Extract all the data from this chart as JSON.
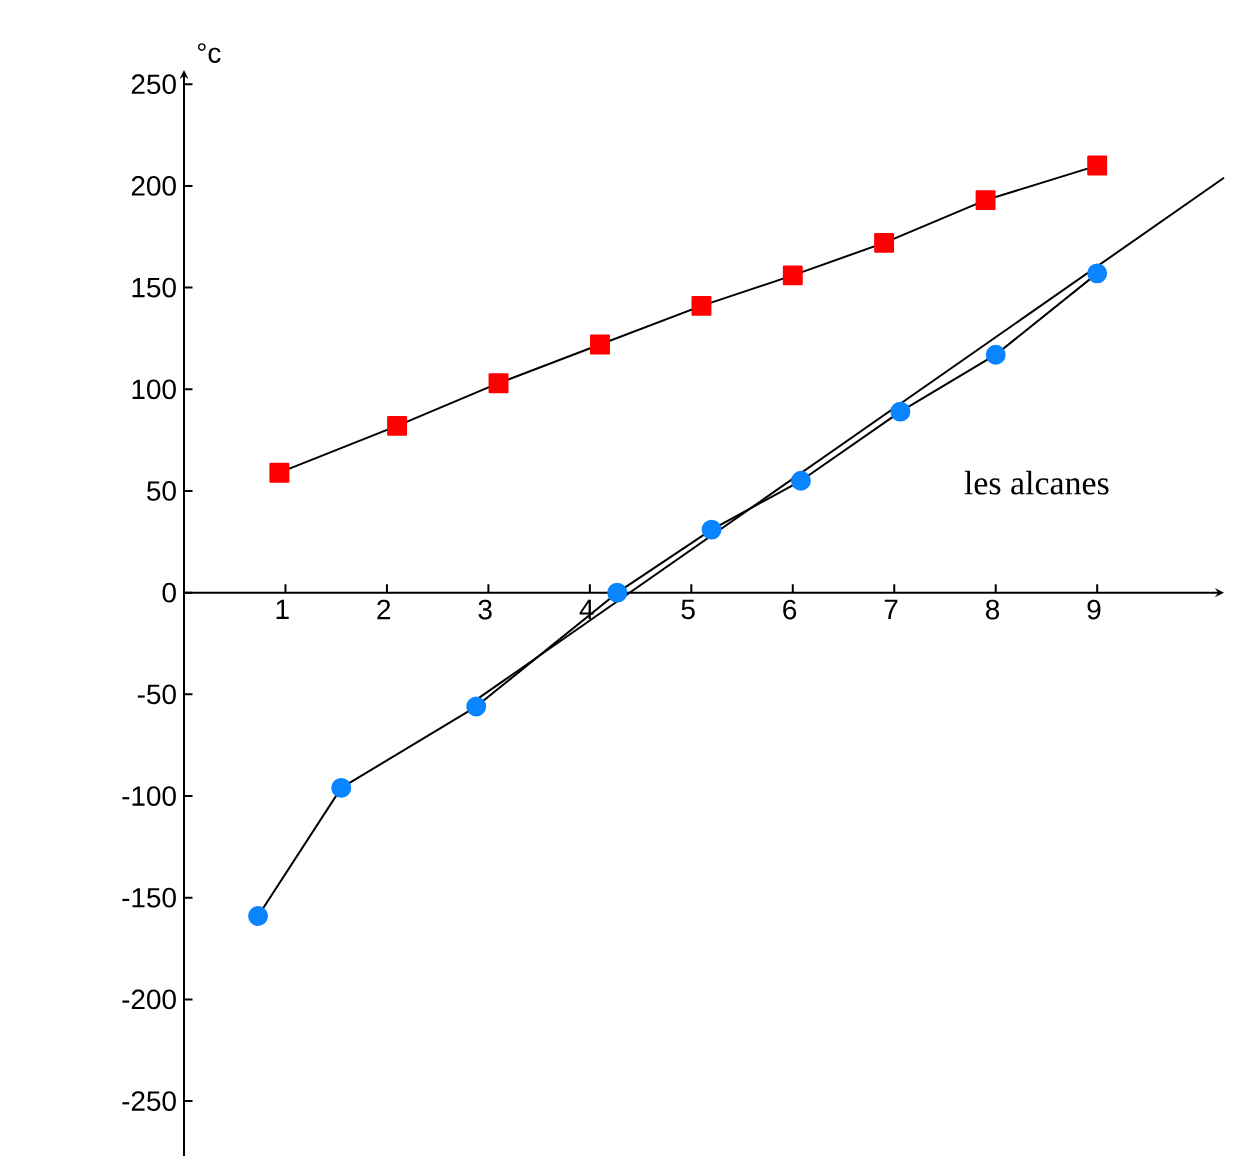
{
  "chart_data": {
    "type": "line",
    "ylabel": "°c",
    "xlim": [
      0,
      10.25
    ],
    "ylim": [
      -277,
      257
    ],
    "xticks": [
      1,
      2,
      3,
      4,
      5,
      6,
      7,
      8,
      9
    ],
    "yticks": [
      -250,
      -200,
      -150,
      -100,
      -50,
      0,
      50,
      100,
      150,
      200,
      250
    ],
    "grid": false,
    "line_style": "solid",
    "series": [
      {
        "color": "#ff0000",
        "marker": "square",
        "x": [
          0.94,
          2.1,
          3.1,
          4.1,
          5.1,
          6.0,
          6.9,
          7.9,
          9.0
        ],
        "values": [
          59,
          82,
          103,
          122,
          141,
          156,
          172,
          193,
          210
        ]
      },
      {
        "color": "#0a84ff",
        "marker": "circle",
        "x": [
          0.73,
          1.55,
          2.88,
          4.27,
          5.2,
          6.08,
          7.06,
          8.0,
          9.0
        ],
        "values": [
          -159,
          -96,
          -56,
          0,
          31,
          55,
          89,
          117,
          157
        ]
      },
      {
        "color": "#000000",
        "marker": "none",
        "x": [
          2.9,
          10.25
        ],
        "values": [
          -52,
          204
        ]
      }
    ],
    "annotations": [
      "les alcanes"
    ]
  }
}
